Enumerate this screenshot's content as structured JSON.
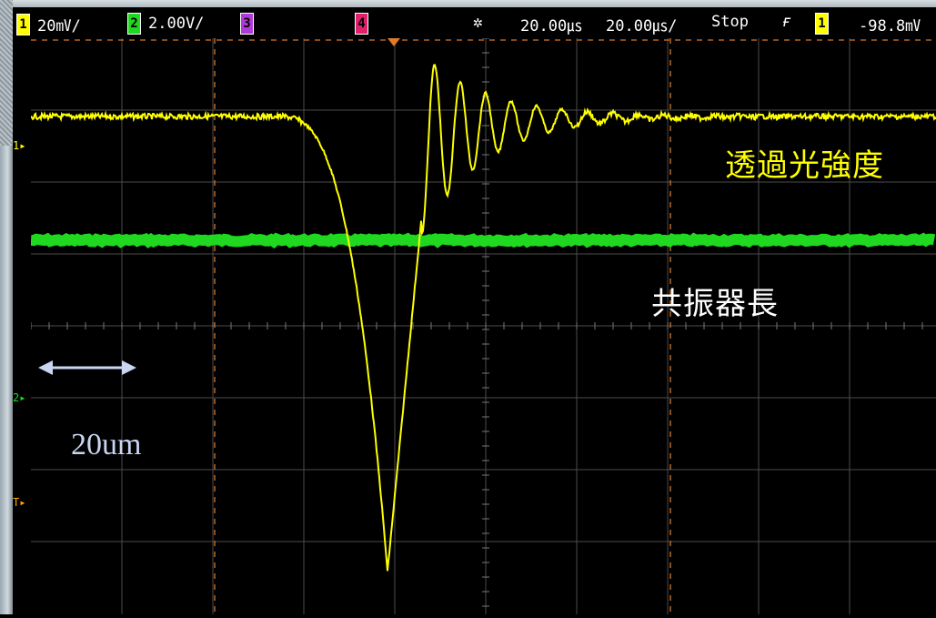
{
  "channels": [
    {
      "id": "1",
      "color": "#ffff00",
      "scale": "20㎷/"
    },
    {
      "id": "2",
      "color": "#1fd81f",
      "scale": "2.00V/"
    },
    {
      "id": "3",
      "color": "#b03ad8",
      "scale": ""
    },
    {
      "id": "4",
      "color": "#e0206a",
      "scale": ""
    }
  ],
  "timebase": {
    "icon": "acquire-sparkle-icon",
    "delay": "20.00㎲",
    "scale": "20.00㎲/"
  },
  "run_state": "Stop",
  "trigger": {
    "icon": "rising-edge-icon",
    "source": "1",
    "level": "-98.8㎷"
  },
  "markers": {
    "ch1": "1",
    "ch2": "2",
    "trigger": "T"
  },
  "annotations": {
    "transmitted_intensity": "透過光強度",
    "resonator_length": "共振器長",
    "scale_bar": "20um"
  },
  "colors": {
    "trace_ch1": "#ffff00",
    "trace_ch2": "#1fd81f",
    "grid": "#4d4d4d",
    "cursor": "#d2782f",
    "background": "#000000",
    "scale_arrow": "#c9d6f2"
  }
}
